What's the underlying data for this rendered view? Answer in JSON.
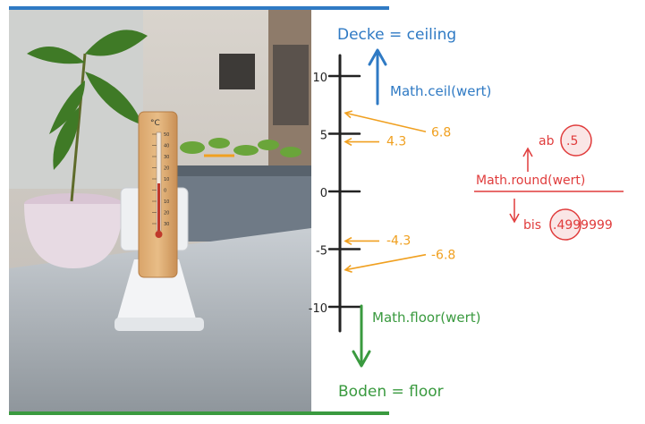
{
  "colors": {
    "blue": "#2f7ac4",
    "green": "#3a9a3f",
    "orange": "#f0a020",
    "red": "#e03c3c",
    "black": "#222222"
  },
  "labels": {
    "ceiling": "Decke = ceiling",
    "ceil_func": "Math.ceil(wert)",
    "floor": "Boden = floor",
    "floor_func": "Math.floor(wert)",
    "round_func": "Math.round(wert)",
    "round_from": "ab",
    "round_from_value": ".5",
    "round_to": "bis",
    "round_to_value": ".4999999"
  },
  "axis": {
    "ticks": [
      {
        "value": 10,
        "label": "10"
      },
      {
        "value": 5,
        "label": "5"
      },
      {
        "value": 0,
        "label": "0"
      },
      {
        "value": -5,
        "label": "-5"
      },
      {
        "value": -10,
        "label": "-10"
      }
    ]
  },
  "markers": [
    {
      "value": 6.8,
      "label": "6.8"
    },
    {
      "value": 4.3,
      "label": "4.3"
    },
    {
      "value": -4.3,
      "label": "-4.3"
    },
    {
      "value": -6.8,
      "label": "-6.8"
    }
  ],
  "thermometer": {
    "unit": "°C",
    "scale": [
      "50",
      "40",
      "30",
      "20",
      "10",
      "0",
      "10",
      "20",
      "30"
    ]
  }
}
